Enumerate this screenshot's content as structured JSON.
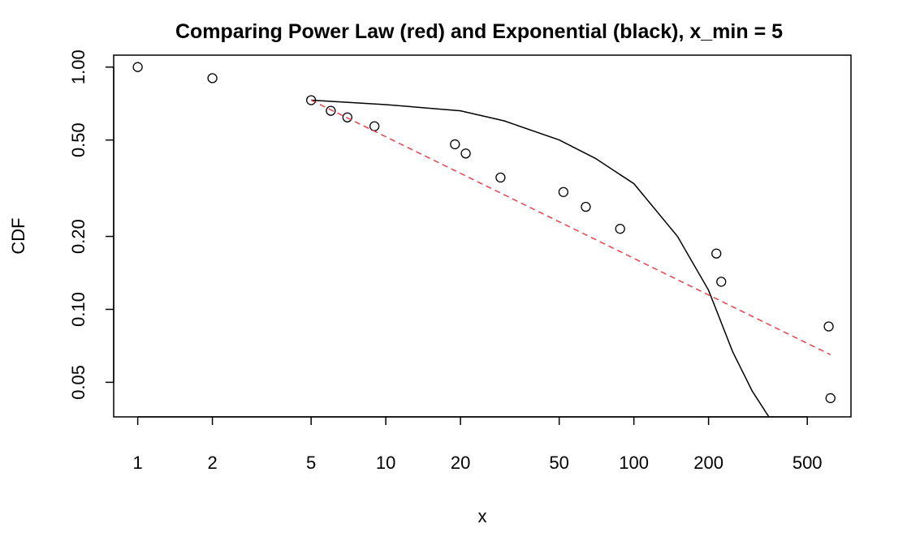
{
  "chart_data": {
    "type": "scatter",
    "title": "Comparing Power Law (red) and Exponential (black), x_min = 5",
    "xlabel": "x",
    "ylabel": "CDF",
    "x_scale": "log",
    "y_scale": "log",
    "xlim": [
      0.8,
      750
    ],
    "ylim": [
      0.036,
      1.12
    ],
    "x_ticks": [
      1,
      2,
      5,
      10,
      20,
      50,
      100,
      200,
      500
    ],
    "x_tick_labels": [
      "1",
      "2",
      "5",
      "10",
      "20",
      "50",
      "100",
      "200",
      "500"
    ],
    "y_ticks": [
      0.05,
      0.1,
      0.2,
      0.5,
      1.0
    ],
    "y_tick_labels": [
      "0.05",
      "0.10",
      "0.20",
      "0.50",
      "1.00"
    ],
    "grid": false,
    "legend": "none",
    "series": [
      {
        "kind": "points",
        "color": "#000000",
        "x": [
          1,
          2,
          5,
          6,
          7,
          9,
          19,
          21,
          29,
          52,
          64,
          88,
          215,
          225,
          610,
          620
        ],
        "y": [
          1.0,
          0.9,
          0.73,
          0.66,
          0.62,
          0.57,
          0.48,
          0.44,
          0.35,
          0.305,
          0.265,
          0.215,
          0.17,
          0.13,
          0.085,
          0.043
        ]
      },
      {
        "kind": "line",
        "style": "solid",
        "color": "#000000",
        "x": [
          5,
          10,
          20,
          30,
          50,
          70,
          100,
          150,
          200,
          250,
          300,
          350
        ],
        "y": [
          0.73,
          0.7,
          0.66,
          0.6,
          0.5,
          0.42,
          0.33,
          0.2,
          0.12,
          0.067,
          0.046,
          0.036
        ]
      },
      {
        "kind": "line",
        "style": "dashed",
        "color": "#e8414a",
        "x": [
          5,
          620
        ],
        "y": [
          0.73,
          0.065
        ]
      }
    ]
  }
}
